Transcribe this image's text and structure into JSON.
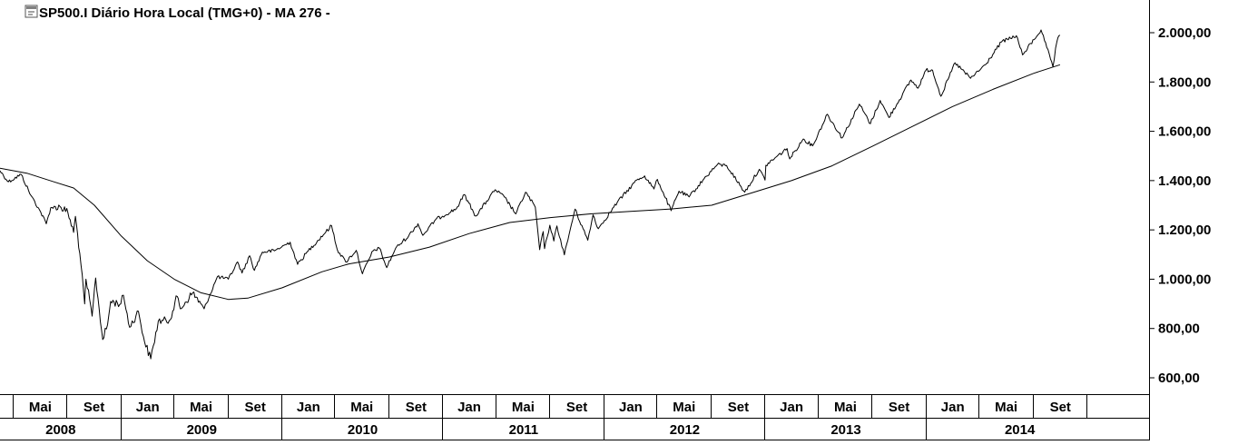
{
  "header": {
    "title": "SP500.I Diário Hora Local (TMG+0)  -  MA 276 -",
    "icon": "chart-window-icon"
  },
  "colors": {
    "background": "#ffffff",
    "price_line": "#000000",
    "ma_line": "#000000",
    "axis": "#000000"
  },
  "chart_data": {
    "type": "line",
    "title": "SP500.I Diário Hora Local (TMG+0)  -  MA 276 -",
    "xlabel": "",
    "ylabel": "",
    "ylim": [
      530,
      2120
    ],
    "xlim": [
      "2008-04-01",
      "2015-03-01"
    ],
    "grid": false,
    "legend": "none",
    "y_ticks": [
      "600,00",
      "800,00",
      "1.000,00",
      "1.200,00",
      "1.400,00",
      "1.600,00",
      "1.800,00",
      "2.000,00"
    ],
    "y_tick_values": [
      600,
      800,
      1000,
      1200,
      1400,
      1600,
      1800,
      2000
    ],
    "x_month_ticks": [
      {
        "date": "2008-05-01",
        "label": "Mai"
      },
      {
        "date": "2008-09-01",
        "label": "Set"
      },
      {
        "date": "2009-01-01",
        "label": "Jan"
      },
      {
        "date": "2009-05-01",
        "label": "Mai"
      },
      {
        "date": "2009-09-01",
        "label": "Set"
      },
      {
        "date": "2010-01-01",
        "label": "Jan"
      },
      {
        "date": "2010-05-01",
        "label": "Mai"
      },
      {
        "date": "2010-09-01",
        "label": "Set"
      },
      {
        "date": "2011-01-01",
        "label": "Jan"
      },
      {
        "date": "2011-05-01",
        "label": "Mai"
      },
      {
        "date": "2011-09-01",
        "label": "Set"
      },
      {
        "date": "2012-01-01",
        "label": "Jan"
      },
      {
        "date": "2012-05-01",
        "label": "Mai"
      },
      {
        "date": "2012-09-01",
        "label": "Set"
      },
      {
        "date": "2013-01-01",
        "label": "Jan"
      },
      {
        "date": "2013-05-01",
        "label": "Mai"
      },
      {
        "date": "2013-09-01",
        "label": "Set"
      },
      {
        "date": "2014-01-01",
        "label": "Jan"
      },
      {
        "date": "2014-05-01",
        "label": "Mai"
      },
      {
        "date": "2014-09-01",
        "label": "Set"
      },
      {
        "date": "2015-01-01",
        "label": ""
      }
    ],
    "x_year_ticks": [
      {
        "label": "2008",
        "start": "2008-04-01",
        "end": "2009-01-01"
      },
      {
        "label": "2009",
        "start": "2009-01-01",
        "end": "2010-01-01"
      },
      {
        "label": "2010",
        "start": "2010-01-01",
        "end": "2011-01-01"
      },
      {
        "label": "2011",
        "start": "2011-01-01",
        "end": "2012-01-01"
      },
      {
        "label": "2012",
        "start": "2012-01-01",
        "end": "2013-01-01"
      },
      {
        "label": "2013",
        "start": "2013-01-01",
        "end": "2014-01-01"
      },
      {
        "label": "2014",
        "start": "2014-01-01",
        "end": "2015-03-01"
      }
    ],
    "series": [
      {
        "name": "SP500.I",
        "points": [
          [
            "2008-04-01",
            1440
          ],
          [
            "2008-04-20",
            1395
          ],
          [
            "2008-05-19",
            1425
          ],
          [
            "2008-06-10",
            1340
          ],
          [
            "2008-06-30",
            1280
          ],
          [
            "2008-07-15",
            1225
          ],
          [
            "2008-07-25",
            1290
          ],
          [
            "2008-08-15",
            1295
          ],
          [
            "2008-09-02",
            1270
          ],
          [
            "2008-09-15",
            1190
          ],
          [
            "2008-09-19",
            1255
          ],
          [
            "2008-09-29",
            1105
          ],
          [
            "2008-10-10",
            900
          ],
          [
            "2008-10-13",
            1000
          ],
          [
            "2008-10-27",
            850
          ],
          [
            "2008-11-04",
            1005
          ],
          [
            "2008-11-20",
            755
          ],
          [
            "2008-12-01",
            815
          ],
          [
            "2008-12-08",
            910
          ],
          [
            "2008-12-31",
            900
          ],
          [
            "2009-01-06",
            935
          ],
          [
            "2009-01-20",
            805
          ],
          [
            "2009-02-09",
            870
          ],
          [
            "2009-02-23",
            745
          ],
          [
            "2009-03-09",
            677
          ],
          [
            "2009-03-26",
            830
          ],
          [
            "2009-04-20",
            832
          ],
          [
            "2009-05-08",
            930
          ],
          [
            "2009-05-15",
            880
          ],
          [
            "2009-06-12",
            945
          ],
          [
            "2009-07-08",
            880
          ],
          [
            "2009-08-07",
            1010
          ],
          [
            "2009-09-01",
            1000
          ],
          [
            "2009-09-22",
            1070
          ],
          [
            "2009-10-02",
            1025
          ],
          [
            "2009-10-19",
            1095
          ],
          [
            "2009-10-30",
            1036
          ],
          [
            "2009-11-17",
            1110
          ],
          [
            "2009-12-14",
            1115
          ],
          [
            "2010-01-19",
            1150
          ],
          [
            "2010-02-05",
            1060
          ],
          [
            "2010-03-01",
            1115
          ],
          [
            "2010-04-23",
            1217
          ],
          [
            "2010-05-06",
            1120
          ],
          [
            "2010-05-25",
            1070
          ],
          [
            "2010-06-18",
            1117
          ],
          [
            "2010-07-02",
            1022
          ],
          [
            "2010-07-26",
            1115
          ],
          [
            "2010-08-09",
            1127
          ],
          [
            "2010-08-26",
            1047
          ],
          [
            "2010-09-15",
            1125
          ],
          [
            "2010-10-15",
            1176
          ],
          [
            "2010-11-05",
            1225
          ],
          [
            "2010-11-16",
            1178
          ],
          [
            "2010-12-15",
            1242
          ],
          [
            "2011-01-31",
            1286
          ],
          [
            "2011-02-18",
            1343
          ],
          [
            "2011-03-16",
            1256
          ],
          [
            "2011-04-29",
            1363
          ],
          [
            "2011-05-20",
            1333
          ],
          [
            "2011-06-15",
            1265
          ],
          [
            "2011-07-07",
            1353
          ],
          [
            "2011-07-29",
            1292
          ],
          [
            "2011-08-08",
            1120
          ],
          [
            "2011-08-16",
            1193
          ],
          [
            "2011-08-19",
            1124
          ],
          [
            "2011-08-31",
            1219
          ],
          [
            "2011-09-09",
            1155
          ],
          [
            "2011-09-16",
            1216
          ],
          [
            "2011-10-03",
            1099
          ],
          [
            "2011-10-27",
            1284
          ],
          [
            "2011-11-25",
            1158
          ],
          [
            "2011-12-07",
            1261
          ],
          [
            "2011-12-19",
            1205
          ],
          [
            "2012-01-31",
            1312
          ],
          [
            "2012-03-15",
            1402
          ],
          [
            "2012-04-02",
            1419
          ],
          [
            "2012-04-23",
            1366
          ],
          [
            "2012-05-01",
            1405
          ],
          [
            "2012-06-01",
            1278
          ],
          [
            "2012-06-19",
            1357
          ],
          [
            "2012-07-12",
            1334
          ],
          [
            "2012-08-20",
            1418
          ],
          [
            "2012-09-14",
            1465
          ],
          [
            "2012-10-05",
            1461
          ],
          [
            "2012-11-15",
            1353
          ],
          [
            "2012-12-18",
            1446
          ],
          [
            "2012-12-31",
            1402
          ],
          [
            "2013-01-02",
            1462
          ],
          [
            "2013-02-19",
            1530
          ],
          [
            "2013-02-25",
            1488
          ],
          [
            "2013-03-28",
            1569
          ],
          [
            "2013-04-18",
            1541
          ],
          [
            "2013-05-21",
            1669
          ],
          [
            "2013-06-24",
            1573
          ],
          [
            "2013-08-02",
            1710
          ],
          [
            "2013-08-27",
            1631
          ],
          [
            "2013-09-18",
            1725
          ],
          [
            "2013-10-08",
            1656
          ],
          [
            "2013-11-27",
            1808
          ],
          [
            "2013-12-13",
            1775
          ],
          [
            "2013-12-31",
            1848
          ],
          [
            "2014-01-15",
            1848
          ],
          [
            "2014-02-03",
            1742
          ],
          [
            "2014-03-07",
            1878
          ],
          [
            "2014-04-11",
            1815
          ],
          [
            "2014-05-15",
            1870
          ],
          [
            "2014-06-20",
            1962
          ],
          [
            "2014-07-24",
            1988
          ],
          [
            "2014-08-07",
            1910
          ],
          [
            "2014-09-18",
            2011
          ],
          [
            "2014-10-01",
            1940
          ],
          [
            "2014-10-15",
            1862
          ],
          [
            "2014-10-24",
            1964
          ],
          [
            "2014-10-31",
            1990
          ]
        ]
      },
      {
        "name": "MA 276",
        "points": [
          [
            "2008-04-01",
            1450
          ],
          [
            "2008-06-01",
            1430
          ],
          [
            "2008-08-01",
            1395
          ],
          [
            "2008-09-15",
            1370
          ],
          [
            "2008-11-01",
            1300
          ],
          [
            "2009-01-01",
            1175
          ],
          [
            "2009-03-01",
            1075
          ],
          [
            "2009-05-01",
            1000
          ],
          [
            "2009-07-01",
            945
          ],
          [
            "2009-09-01",
            918
          ],
          [
            "2009-10-15",
            923
          ],
          [
            "2010-01-01",
            965
          ],
          [
            "2010-04-01",
            1030
          ],
          [
            "2010-06-01",
            1062
          ],
          [
            "2010-09-01",
            1090
          ],
          [
            "2010-12-01",
            1130
          ],
          [
            "2011-03-01",
            1185
          ],
          [
            "2011-06-01",
            1230
          ],
          [
            "2011-09-01",
            1250
          ],
          [
            "2011-12-01",
            1265
          ],
          [
            "2012-03-01",
            1275
          ],
          [
            "2012-06-01",
            1285
          ],
          [
            "2012-09-01",
            1300
          ],
          [
            "2012-12-01",
            1350
          ],
          [
            "2013-03-01",
            1400
          ],
          [
            "2013-06-01",
            1460
          ],
          [
            "2013-09-01",
            1540
          ],
          [
            "2013-12-01",
            1620
          ],
          [
            "2014-03-01",
            1700
          ],
          [
            "2014-06-01",
            1770
          ],
          [
            "2014-09-01",
            1835
          ],
          [
            "2014-10-31",
            1870
          ]
        ]
      }
    ]
  }
}
